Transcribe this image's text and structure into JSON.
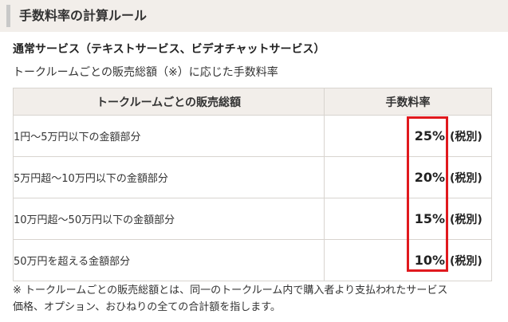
{
  "section": {
    "title": "手数料率の計算ルール"
  },
  "service": {
    "subtitle": "通常サービス（テキストサービス、ビデオチャットサービス）",
    "description": "トークルームごとの販売総額（※）に応じた手数料率"
  },
  "table": {
    "headers": [
      "トークルームごとの販売総額",
      "手数料率"
    ],
    "rows": [
      {
        "range": "1円〜5万円以下の金額部分",
        "rate": "25%",
        "tax": "(税別)"
      },
      {
        "range": "5万円超〜10万円以下の金額部分",
        "rate": "20%",
        "tax": "(税別)"
      },
      {
        "range": "10万円超〜50万円以下の金額部分",
        "rate": "15%",
        "tax": "(税別)"
      },
      {
        "range": "50万円を超える金額部分",
        "rate": "10%",
        "tax": "(税別)"
      }
    ]
  },
  "note": {
    "line1": "※ トークルームごとの販売総額とは、同一のトークルーム内で購入者より支払われたサービス",
    "line2": "価格、オプション、おひねりの全ての合計額を指します。"
  },
  "colors": {
    "highlight": "#e0191e",
    "header_bg": "#f2eeea"
  }
}
